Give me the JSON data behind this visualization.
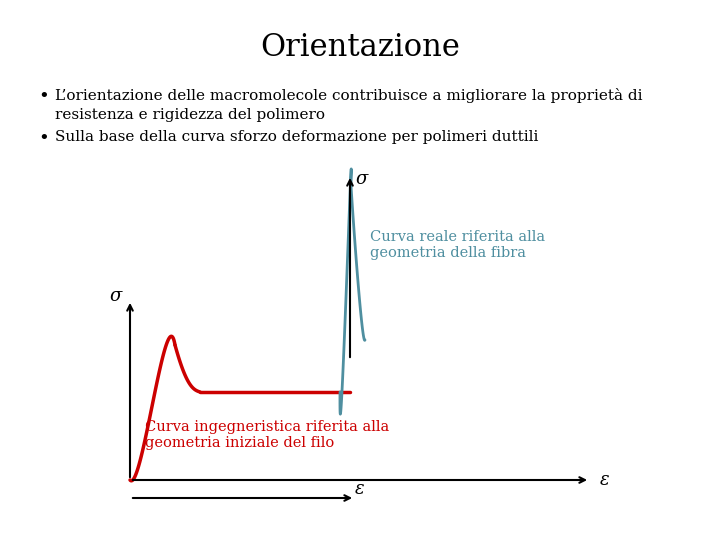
{
  "title": "Orientazione",
  "bg_color": "#ffffff",
  "bullet1_line1": "L’orientazione delle macromolecole contribuisce a migliorare la proprietà di",
  "bullet1_line2": "resistenza e rigidezza del polimero",
  "bullet2": "Sulla base della curva sforzo deformazione per polimeri duttili",
  "label_sigma": "σ",
  "label_epsilon": "ε",
  "annotation_blue": "Curva reale riferita alla\ngeometria della fibra",
  "annotation_red": "Curva ingegneristica riferita alla\ngeometria iniziale del filo",
  "red_color": "#cc0000",
  "blue_color": "#4f8fa0",
  "text_color": "#000000",
  "annotation_color_blue": "#4f8fa0",
  "annotation_color_red": "#cc0000"
}
